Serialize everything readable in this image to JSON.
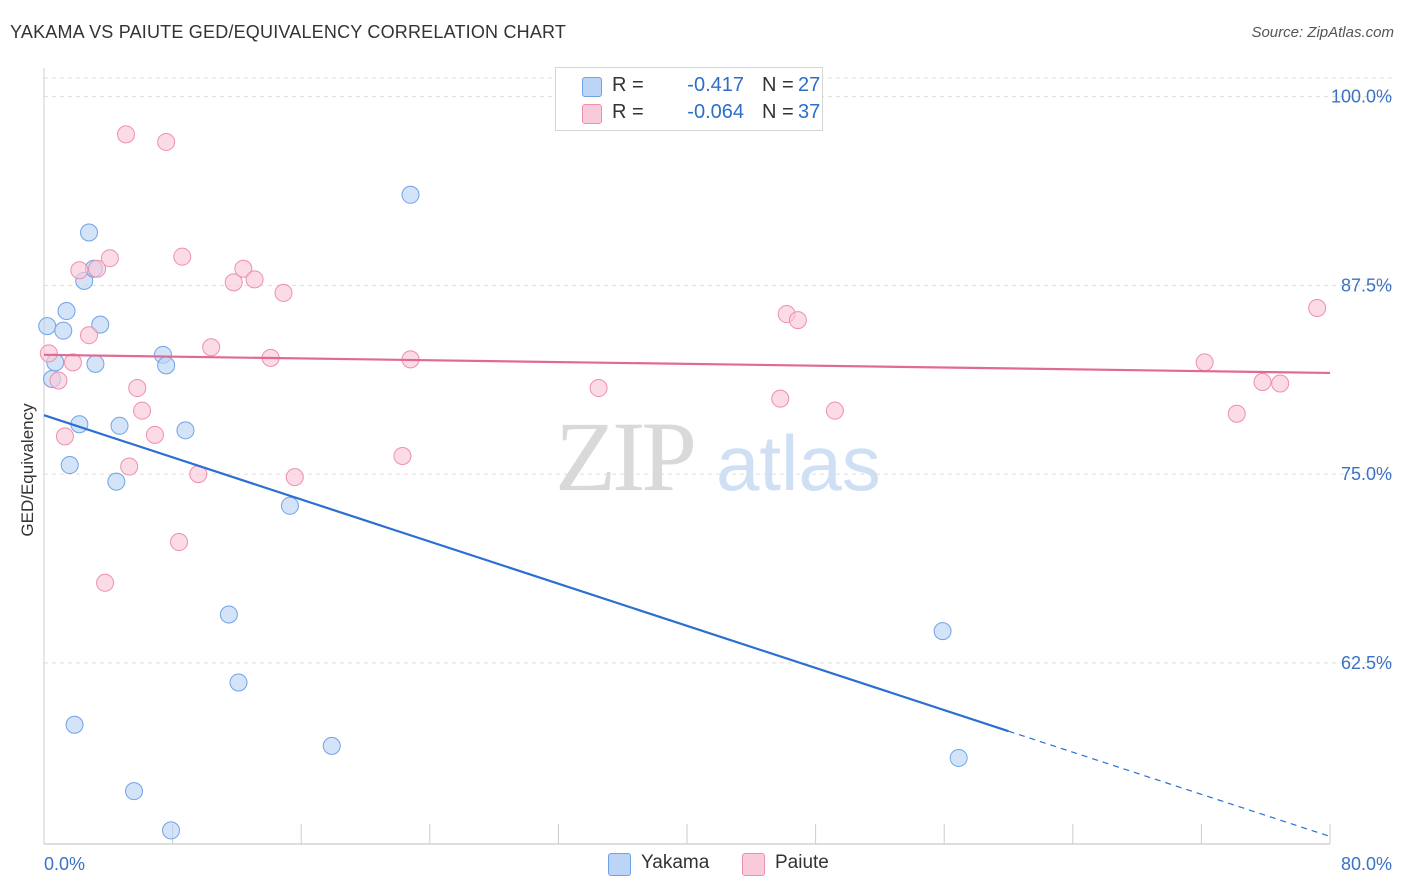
{
  "header": {
    "title": "YAKAMA VS PAIUTE GED/EQUIVALENCY CORRELATION CHART",
    "source": "Source: ZipAtlas.com"
  },
  "watermark": {
    "zip": "ZIP",
    "atlas": "atlas"
  },
  "legend": {
    "r_label": "R =",
    "n_label": "N =",
    "yakama": {
      "r": "-0.417",
      "n": "27",
      "color": "#6fa3e6",
      "fill": "#bcd4f5"
    },
    "paiute": {
      "r": "-0.064",
      "n": "37",
      "color": "#ee8fae",
      "fill": "#f9cad9"
    }
  },
  "series_labels": {
    "yakama": "Yakama",
    "paiute": "Paiute"
  },
  "chart_data": {
    "type": "scatter",
    "title": "YAKAMA VS PAIUTE GED/EQUIVALENCY CORRELATION CHART",
    "xlabel": "",
    "ylabel": "GED/Equivalency",
    "xlim": [
      0,
      80
    ],
    "ylim": [
      50.5,
      101.5
    ],
    "x_tick_labels": [
      "0.0%",
      "80.0%"
    ],
    "y_ticks": [
      62.5,
      75.0,
      87.5,
      100.0
    ],
    "y_tick_labels": [
      "62.5%",
      "75.0%",
      "87.5%",
      "100.0%"
    ],
    "grid": true,
    "legend_position": "top-center",
    "series": [
      {
        "name": "Yakama",
        "color": "#6fa3e6",
        "trend": {
          "x0": 0,
          "y0": 78.9,
          "x1": 80,
          "y1": 51.0,
          "solid_until": 60
        },
        "points": [
          [
            0.2,
            84.8
          ],
          [
            0.5,
            81.3
          ],
          [
            0.7,
            82.4
          ],
          [
            1.2,
            84.5
          ],
          [
            1.4,
            85.8
          ],
          [
            1.6,
            75.6
          ],
          [
            1.9,
            58.4
          ],
          [
            2.2,
            78.3
          ],
          [
            2.5,
            87.8
          ],
          [
            2.8,
            91.0
          ],
          [
            3.1,
            88.6
          ],
          [
            3.2,
            82.3
          ],
          [
            3.5,
            84.9
          ],
          [
            4.5,
            74.5
          ],
          [
            4.7,
            78.2
          ],
          [
            5.6,
            54.0
          ],
          [
            7.4,
            82.9
          ],
          [
            7.6,
            82.2
          ],
          [
            7.9,
            51.4
          ],
          [
            8.8,
            77.9
          ],
          [
            11.5,
            65.7
          ],
          [
            12.1,
            61.2
          ],
          [
            15.3,
            72.9
          ],
          [
            17.9,
            57.0
          ],
          [
            22.8,
            93.5
          ],
          [
            55.9,
            64.6
          ],
          [
            56.9,
            56.2
          ]
        ]
      },
      {
        "name": "Paiute",
        "color": "#ee8fae",
        "trend": {
          "x0": 0,
          "y0": 82.9,
          "x1": 80,
          "y1": 81.7
        },
        "points": [
          [
            0.3,
            83.0
          ],
          [
            0.9,
            81.2
          ],
          [
            1.3,
            77.5
          ],
          [
            1.8,
            82.4
          ],
          [
            2.2,
            88.5
          ],
          [
            2.8,
            84.2
          ],
          [
            3.3,
            88.6
          ],
          [
            3.8,
            67.8
          ],
          [
            4.1,
            89.3
          ],
          [
            5.1,
            97.5
          ],
          [
            5.3,
            75.5
          ],
          [
            5.8,
            80.7
          ],
          [
            6.1,
            79.2
          ],
          [
            6.9,
            77.6
          ],
          [
            7.6,
            97.0
          ],
          [
            8.4,
            70.5
          ],
          [
            8.6,
            89.4
          ],
          [
            9.6,
            75.0
          ],
          [
            10.4,
            83.4
          ],
          [
            11.8,
            87.7
          ],
          [
            12.4,
            88.6
          ],
          [
            13.1,
            87.9
          ],
          [
            14.1,
            82.7
          ],
          [
            14.9,
            87.0
          ],
          [
            15.6,
            74.8
          ],
          [
            22.8,
            82.6
          ],
          [
            22.3,
            76.2
          ],
          [
            34.5,
            80.7
          ],
          [
            45.8,
            80.0
          ],
          [
            46.2,
            85.6
          ],
          [
            46.9,
            85.2
          ],
          [
            49.2,
            79.2
          ],
          [
            72.2,
            82.4
          ],
          [
            74.2,
            79.0
          ],
          [
            75.8,
            81.1
          ],
          [
            76.9,
            81.0
          ],
          [
            79.2,
            86.0
          ]
        ]
      }
    ]
  }
}
